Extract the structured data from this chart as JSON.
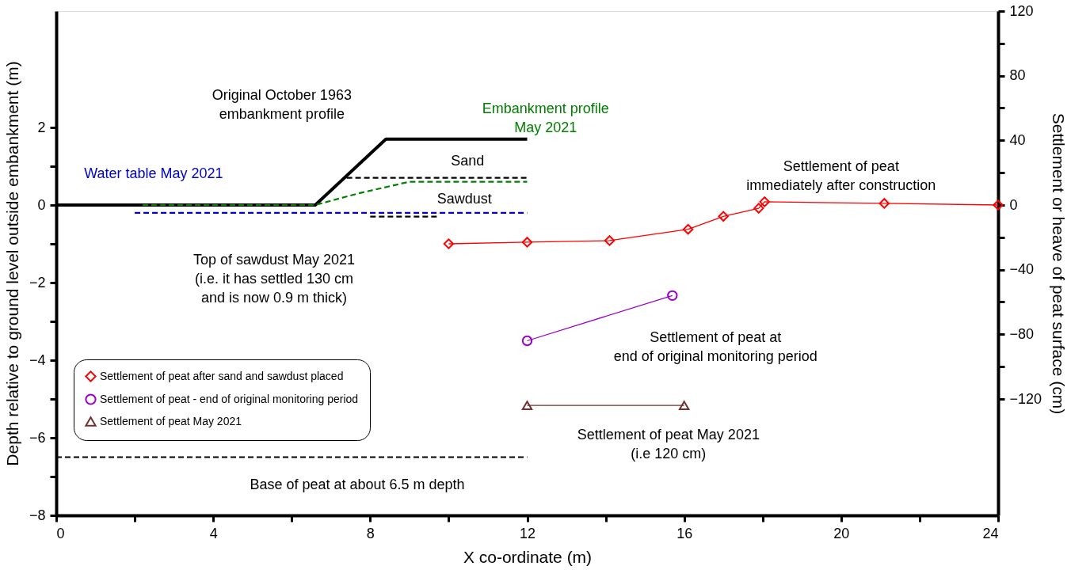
{
  "chart_data": {
    "type": "line",
    "xlabel": "X co-ordinate (m)",
    "ylabel": "Depth relative to ground level outside embankment (m)",
    "y2label": "Settlement or heave of peat surface (cm)",
    "xlim": [
      0,
      24
    ],
    "xticks": [
      0,
      {
        "value": 2,
        "label": null
      },
      4,
      {
        "value": 6,
        "label": null
      },
      8,
      {
        "value": 10,
        "label": null
      },
      12,
      {
        "value": 14,
        "label": null
      },
      16,
      {
        "value": 18,
        "label": null
      },
      20,
      {
        "value": 22,
        "label": null
      },
      24
    ],
    "ylim": [
      -8,
      5
    ],
    "yticks": [
      -8,
      {
        "value": -7,
        "label": null
      },
      -6,
      {
        "value": -5,
        "label": null
      },
      -4,
      {
        "value": -3,
        "label": null
      },
      -2,
      {
        "value": -1,
        "label": null
      },
      0,
      {
        "value": 1,
        "label": null
      },
      2
    ],
    "y2lim": [
      -192,
      120
    ],
    "y2ticks": [
      -120,
      {
        "value": -100,
        "label": null
      },
      -80,
      {
        "value": -60,
        "label": null
      },
      -40,
      {
        "value": -20,
        "label": null
      },
      0,
      {
        "value": 20,
        "label": null
      },
      40,
      {
        "value": 60,
        "label": null
      },
      80,
      {
        "value": 100,
        "label": null
      },
      120
    ],
    "legend": "left",
    "series": [
      {
        "color": "#000000",
        "line_style": "solid",
        "marker": "none",
        "x": [
          0,
          6.6,
          8.4,
          12
        ],
        "values": [
          0,
          0,
          1.7,
          1.7
        ]
      },
      {
        "color": "#008000",
        "line_style": "dashed",
        "marker": "none",
        "x": [
          2.2,
          6.6,
          7.7,
          9,
          12
        ],
        "values": [
          0,
          0,
          0.3,
          0.6,
          0.6
        ]
      },
      {
        "color": "#0000cc",
        "line_style": "dashed",
        "marker": "none",
        "x": [
          2,
          12
        ],
        "values": [
          -0.2,
          -0.2
        ]
      },
      {
        "color": "#000000",
        "line_style": "dashed",
        "marker": "none",
        "x": [
          7.4,
          12
        ],
        "values": [
          0.7,
          0.7
        ]
      },
      {
        "color": "#000000",
        "line_style": "dashed",
        "marker": "none",
        "x": [
          8,
          9.7
        ],
        "values": [
          -0.3,
          -0.3
        ]
      },
      {
        "color": "#000000",
        "line_style": "dashed",
        "marker": "none",
        "x": [
          0,
          12
        ],
        "values": [
          -6.5,
          -6.5
        ]
      },
      {
        "axis": "y2",
        "name": "Settlement of peat after sand and sawdust placed",
        "color": "#ff0000",
        "line_style": "solid",
        "marker": "diamond",
        "x": [
          10,
          12,
          14.1,
          16.1,
          17,
          17.9,
          18.05,
          21.1,
          24
        ],
        "values": [
          -24,
          -23,
          -22,
          -15,
          -7,
          -2,
          2,
          1,
          0
        ]
      },
      {
        "axis": "y2",
        "name": "Settlement of peat - end of original monitoring period",
        "color": "#9900cc",
        "line_style": "solid",
        "marker": "circle",
        "x": [
          12,
          15.7
        ],
        "values": [
          -84,
          -56
        ]
      },
      {
        "axis": "y2",
        "name": "Settlement of peat May 2021",
        "color": "#703030",
        "line_style": "solid",
        "marker": "triangle",
        "x": [
          12,
          16
        ],
        "values": [
          -124,
          -124
        ]
      }
    ],
    "annotations": [
      "Original October 1963\nembankment profile",
      "Embankment profile\nMay 2021",
      "Water table May 2021",
      "Sand",
      "Sawdust",
      "Top of sawdust May 2021\n(i.e. it has settled 130 cm\nand is now 0.9 m thick)",
      "Settlement of peat\nimmediately after construction",
      "Settlement of peat at\nend of original monitoring period",
      "Settlement of peat May 2021\n(i.e 120 cm)",
      "Base of peat at about 6.5 m depth"
    ]
  }
}
